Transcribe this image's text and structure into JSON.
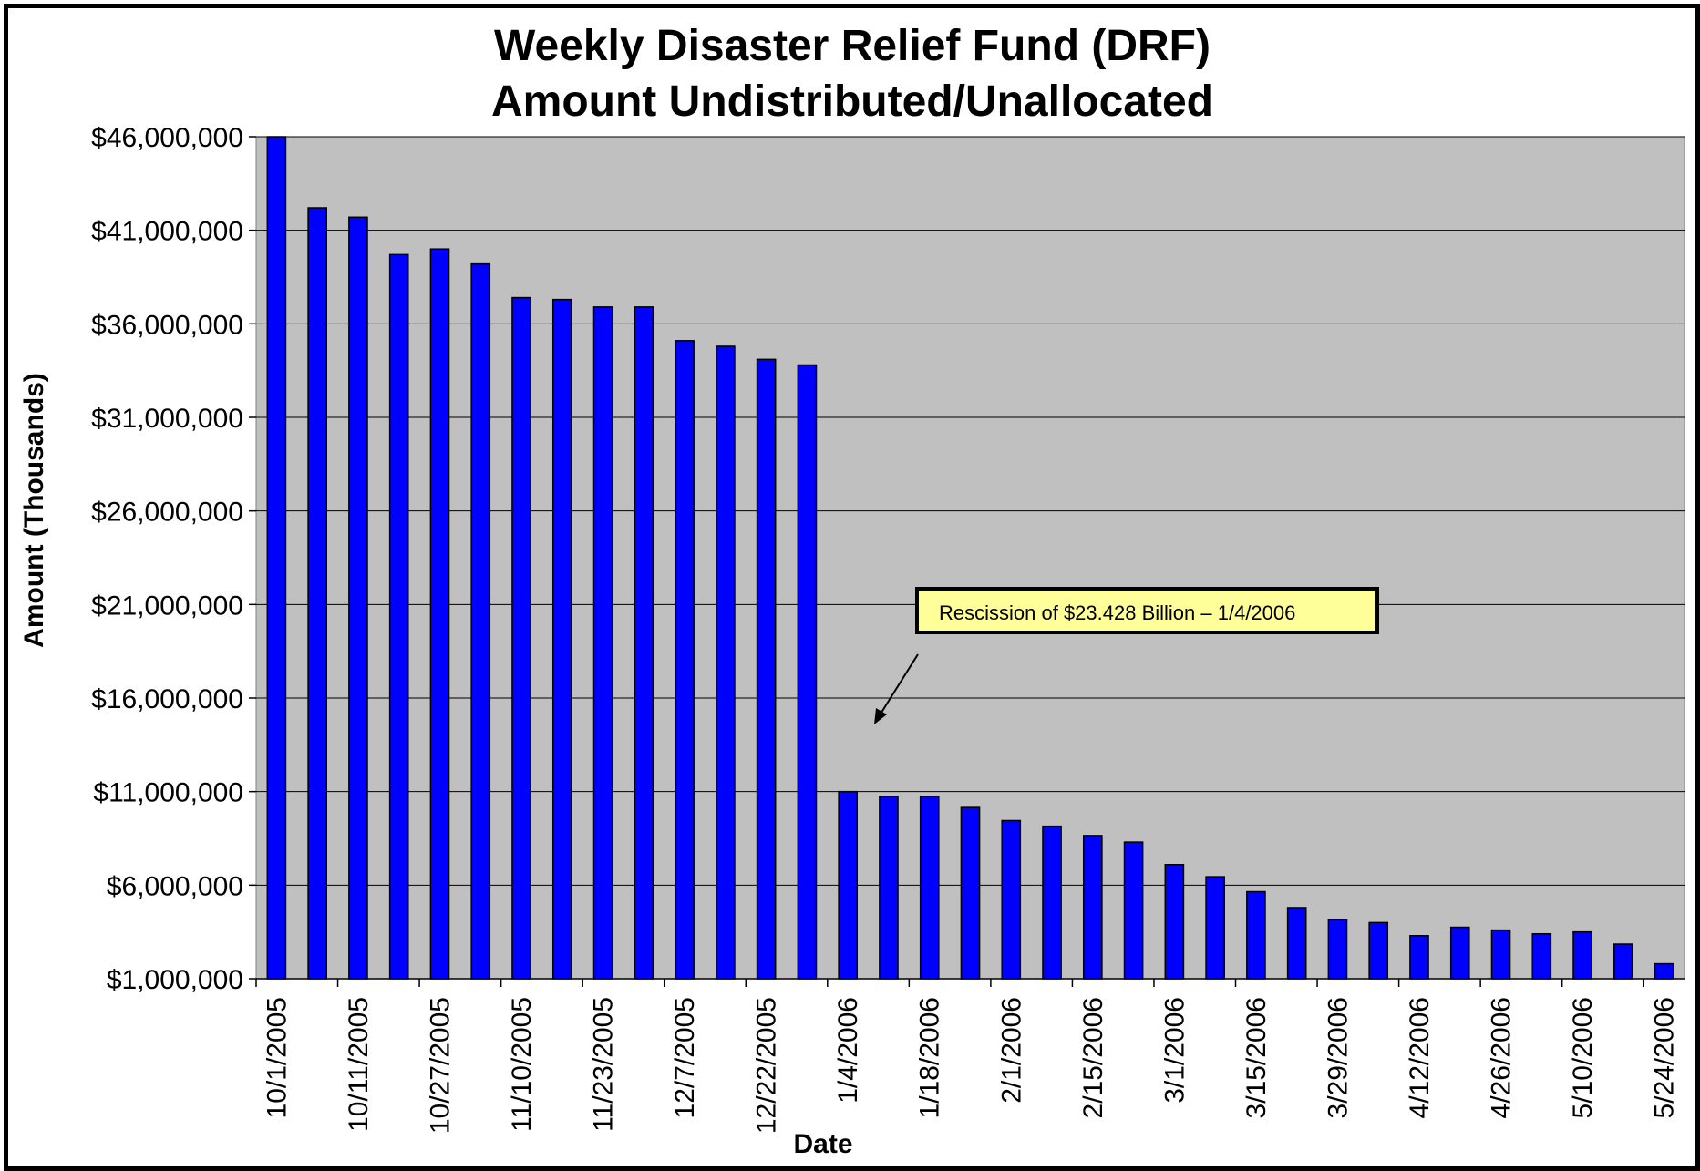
{
  "colors": {
    "plot_background": "#c0c0c0",
    "bar_fill": "#0000ff",
    "bar_stroke": "#000000",
    "gridline": "#000000",
    "annotation_fill": "#ffff99"
  },
  "chart_data": {
    "type": "bar",
    "title_line1": "Weekly Disaster Relief Fund (DRF)",
    "title_line2": "Amount Undistributed/Unallocated",
    "xlabel": "Date",
    "ylabel": "Amount (Thousands)",
    "ylim": [
      1000000,
      46000000
    ],
    "yticks": [
      1000000,
      6000000,
      11000000,
      16000000,
      21000000,
      26000000,
      31000000,
      36000000,
      41000000,
      46000000
    ],
    "ytick_labels": [
      "$1,000,000",
      "$6,000,000",
      "$11,000,000",
      "$16,000,000",
      "$21,000,000",
      "$26,000,000",
      "$31,000,000",
      "$36,000,000",
      "$41,000,000",
      "$46,000,000"
    ],
    "grid": true,
    "legend": "none",
    "categories": [
      "10/1/2005",
      "",
      "10/11/2005",
      "",
      "10/27/2005",
      "",
      "11/10/2005",
      "",
      "11/23/2005",
      "",
      "12/7/2005",
      "",
      "12/22/2005",
      "",
      "1/4/2006",
      "",
      "1/18/2006",
      "",
      "2/1/2006",
      "",
      "2/15/2006",
      "",
      "3/1/2006",
      "",
      "3/15/2006",
      "",
      "3/29/2006",
      "",
      "4/12/2006",
      "",
      "4/26/2006",
      "",
      "5/10/2006",
      "",
      "5/24/2006"
    ],
    "values": [
      46000000,
      42200000,
      41700000,
      39700000,
      40000000,
      39200000,
      37400000,
      37300000,
      36900000,
      36900000,
      35100000,
      34800000,
      34100000,
      33800000,
      11000000,
      10750000,
      10750000,
      10150000,
      9450000,
      9150000,
      8650000,
      8300000,
      7100000,
      6450000,
      5650000,
      4800000,
      4150000,
      4000000,
      3300000,
      3750000,
      3600000,
      3400000,
      3500000,
      2850000,
      1800000
    ],
    "annotation": {
      "text": "Rescission of $23.428 Billion – 1/4/2006"
    }
  }
}
